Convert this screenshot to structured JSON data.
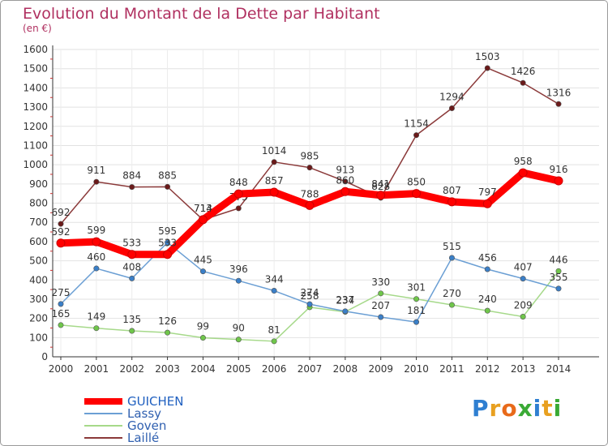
{
  "header": {
    "title": "Evolution du Montant de la Dette par Habitant",
    "subtitle": "(en €)"
  },
  "logo": {
    "letters": [
      {
        "ch": "P",
        "color": "#2f7fd1"
      },
      {
        "ch": "r",
        "color": "#e8a020"
      },
      {
        "ch": "o",
        "color": "#e86a1a"
      },
      {
        "ch": "x",
        "color": "#3aaa35"
      },
      {
        "ch": "i",
        "color": "#2f7fd1"
      },
      {
        "ch": "t",
        "color": "#e8a020"
      },
      {
        "ch": "i",
        "color": "#3aaa35"
      }
    ]
  },
  "chart_data": {
    "type": "line",
    "title": "Evolution du Montant de la Dette par Habitant",
    "subtitle": "(en €)",
    "x": [
      "2000",
      "2001",
      "2002",
      "2003",
      "2004",
      "2005",
      "2006",
      "2007",
      "2008",
      "2009",
      "2010",
      "2011",
      "2012",
      "2013",
      "2014"
    ],
    "ylim": [
      0,
      1600
    ],
    "yticks": [
      0,
      100,
      200,
      300,
      400,
      500,
      600,
      700,
      800,
      900,
      1000,
      1100,
      1200,
      1300,
      1400,
      1500,
      1600
    ],
    "grid": true,
    "legend_position": "bottom-left",
    "series": [
      {
        "name": "GUICHEN",
        "color": "#ff0000",
        "marker": "#ff0000",
        "bold": true,
        "values": [
          592,
          599,
          533,
          533,
          714,
          848,
          857,
          788,
          860,
          841,
          850,
          807,
          797,
          958,
          916
        ]
      },
      {
        "name": "Lassy",
        "color": "#6b9fd4",
        "marker": "#3a7fc8",
        "values": [
          275,
          460,
          408,
          595,
          445,
          396,
          344,
          274,
          237,
          207,
          181,
          515,
          456,
          407,
          355
        ]
      },
      {
        "name": "Goven",
        "color": "#a6d98a",
        "marker": "#6fc64a",
        "values": [
          165,
          149,
          135,
          126,
          99,
          90,
          81,
          258,
          234,
          330,
          301,
          270,
          240,
          209,
          446
        ]
      },
      {
        "name": "Laillé",
        "color": "#8b3a3a",
        "marker": "#6b1a1a",
        "values": [
          692,
          911,
          884,
          885,
          713,
          773,
          1014,
          985,
          913,
          828,
          1154,
          1294,
          1503,
          1426,
          1316
        ]
      }
    ]
  }
}
